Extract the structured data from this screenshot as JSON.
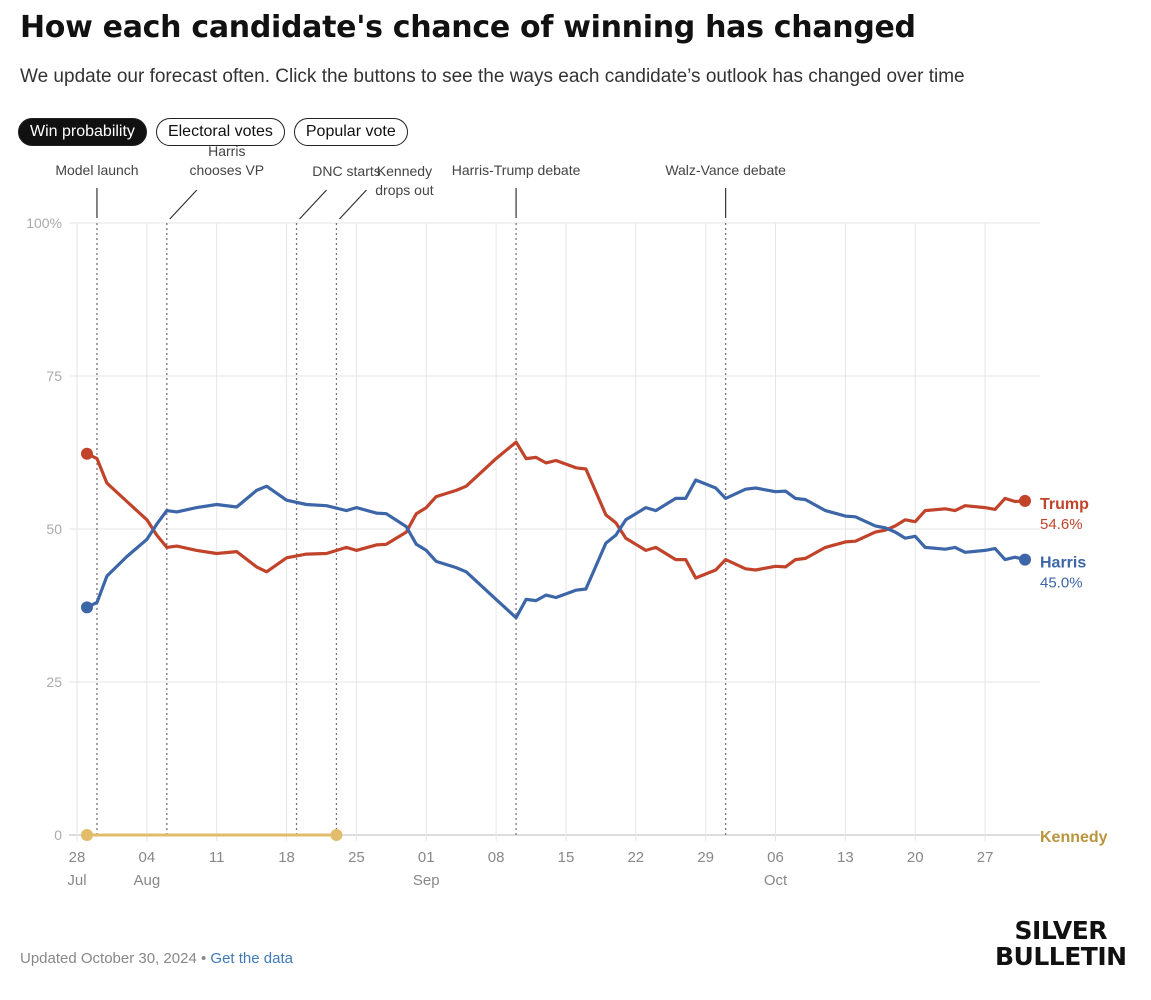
{
  "header": {
    "title": "How each candidate's chance of winning has changed",
    "subtitle": "We update our forecast often. Click the buttons to see the ways each candidate’s outlook has changed over time"
  },
  "buttons": [
    {
      "label": "Win probability",
      "active": true
    },
    {
      "label": "Electoral votes",
      "active": false
    },
    {
      "label": "Popular vote",
      "active": false
    }
  ],
  "footer": {
    "updated": "Updated October 30, 2024",
    "separator": "•",
    "link": "Get the data"
  },
  "logo": {
    "line1": "SILVER",
    "line2": "BULLETIN"
  },
  "colors": {
    "trump": "#c0432a",
    "harris": "#3d66a8",
    "kennedy": "#e2bc6a",
    "grid": "#e6e6e6"
  },
  "chart_data": {
    "type": "line",
    "ylim": [
      0,
      100
    ],
    "y_ticks": [
      {
        "value": 0,
        "label": "0"
      },
      {
        "value": 25,
        "label": "25"
      },
      {
        "value": 50,
        "label": "50"
      },
      {
        "value": 75,
        "label": "75"
      },
      {
        "value": 100,
        "label": "100%"
      }
    ],
    "x_range": [
      "2024-07-28",
      "2024-10-31"
    ],
    "x_ticks": [
      {
        "date": "2024-07-28",
        "label": "28",
        "month": "Jul"
      },
      {
        "date": "2024-08-04",
        "label": "04",
        "month": "Aug"
      },
      {
        "date": "2024-08-11",
        "label": "11",
        "month": ""
      },
      {
        "date": "2024-08-18",
        "label": "18",
        "month": ""
      },
      {
        "date": "2024-08-25",
        "label": "25",
        "month": ""
      },
      {
        "date": "2024-09-01",
        "label": "01",
        "month": "Sep"
      },
      {
        "date": "2024-09-08",
        "label": "08",
        "month": ""
      },
      {
        "date": "2024-09-15",
        "label": "15",
        "month": ""
      },
      {
        "date": "2024-09-22",
        "label": "22",
        "month": ""
      },
      {
        "date": "2024-09-29",
        "label": "29",
        "month": ""
      },
      {
        "date": "2024-10-06",
        "label": "06",
        "month": "Oct"
      },
      {
        "date": "2024-10-13",
        "label": "13",
        "month": ""
      },
      {
        "date": "2024-10-20",
        "label": "20",
        "month": ""
      },
      {
        "date": "2024-10-27",
        "label": "27",
        "month": ""
      }
    ],
    "events": [
      {
        "date": "2024-07-30",
        "label": [
          "Model launch"
        ],
        "connector": "vertical"
      },
      {
        "date": "2024-08-06",
        "label": [
          "Harris",
          "chooses VP"
        ],
        "connector": "diagonal"
      },
      {
        "date": "2024-08-19",
        "label": [
          "DNC starts"
        ],
        "connector": "diagonal"
      },
      {
        "date": "2024-08-23",
        "label": [
          "Kennedy",
          "drops out"
        ],
        "connector": "diagonal"
      },
      {
        "date": "2024-09-10",
        "label": [
          "Harris-Trump debate"
        ],
        "connector": "vertical"
      },
      {
        "date": "2024-10-01",
        "label": [
          "Walz-Vance debate"
        ],
        "connector": "vertical"
      }
    ],
    "series": [
      {
        "name": "Trump",
        "end_label": "54.6%",
        "points": [
          [
            "2024-07-29",
            62.3
          ],
          [
            "2024-07-30",
            61.5
          ],
          [
            "2024-07-31",
            57.5
          ],
          [
            "2024-08-02",
            54.5
          ],
          [
            "2024-08-04",
            51.5
          ],
          [
            "2024-08-05",
            49.0
          ],
          [
            "2024-08-06",
            47.0
          ],
          [
            "2024-08-07",
            47.2
          ],
          [
            "2024-08-09",
            46.5
          ],
          [
            "2024-08-11",
            46.0
          ],
          [
            "2024-08-13",
            46.3
          ],
          [
            "2024-08-15",
            43.8
          ],
          [
            "2024-08-16",
            43.0
          ],
          [
            "2024-08-18",
            45.3
          ],
          [
            "2024-08-20",
            45.9
          ],
          [
            "2024-08-22",
            46.0
          ],
          [
            "2024-08-24",
            47.0
          ],
          [
            "2024-08-25",
            46.5
          ],
          [
            "2024-08-27",
            47.4
          ],
          [
            "2024-08-28",
            47.5
          ],
          [
            "2024-08-30",
            49.5
          ],
          [
            "2024-08-31",
            52.5
          ],
          [
            "2024-09-01",
            53.5
          ],
          [
            "2024-09-02",
            55.3
          ],
          [
            "2024-09-04",
            56.3
          ],
          [
            "2024-09-05",
            57.0
          ],
          [
            "2024-09-07",
            60.0
          ],
          [
            "2024-09-08",
            61.5
          ],
          [
            "2024-09-10",
            64.2
          ],
          [
            "2024-09-11",
            61.5
          ],
          [
            "2024-09-12",
            61.7
          ],
          [
            "2024-09-13",
            60.8
          ],
          [
            "2024-09-14",
            61.2
          ],
          [
            "2024-09-16",
            60.0
          ],
          [
            "2024-09-17",
            59.8
          ],
          [
            "2024-09-19",
            52.3
          ],
          [
            "2024-09-20",
            51.0
          ],
          [
            "2024-09-21",
            48.5
          ],
          [
            "2024-09-23",
            46.5
          ],
          [
            "2024-09-24",
            47.0
          ],
          [
            "2024-09-26",
            45.0
          ],
          [
            "2024-09-27",
            45.0
          ],
          [
            "2024-09-28",
            42.0
          ],
          [
            "2024-09-30",
            43.3
          ],
          [
            "2024-10-01",
            45.0
          ],
          [
            "2024-10-03",
            43.5
          ],
          [
            "2024-10-04",
            43.3
          ],
          [
            "2024-10-06",
            43.9
          ],
          [
            "2024-10-07",
            43.8
          ],
          [
            "2024-10-08",
            45.0
          ],
          [
            "2024-10-09",
            45.2
          ],
          [
            "2024-10-11",
            47.0
          ],
          [
            "2024-10-13",
            47.9
          ],
          [
            "2024-10-14",
            48.0
          ],
          [
            "2024-10-16",
            49.5
          ],
          [
            "2024-10-17",
            49.8
          ],
          [
            "2024-10-18",
            50.5
          ],
          [
            "2024-10-19",
            51.5
          ],
          [
            "2024-10-20",
            51.2
          ],
          [
            "2024-10-21",
            53.0
          ],
          [
            "2024-10-23",
            53.3
          ],
          [
            "2024-10-24",
            53.0
          ],
          [
            "2024-10-25",
            53.8
          ],
          [
            "2024-10-27",
            53.5
          ],
          [
            "2024-10-28",
            53.2
          ],
          [
            "2024-10-29",
            55.0
          ],
          [
            "2024-10-30",
            54.5
          ],
          [
            "2024-10-31",
            54.6
          ]
        ]
      },
      {
        "name": "Harris",
        "end_label": "45.0%",
        "points": [
          [
            "2024-07-29",
            37.2
          ],
          [
            "2024-07-30",
            38.0
          ],
          [
            "2024-07-31",
            42.3
          ],
          [
            "2024-08-02",
            45.5
          ],
          [
            "2024-08-04",
            48.3
          ],
          [
            "2024-08-05",
            50.8
          ],
          [
            "2024-08-06",
            53.0
          ],
          [
            "2024-08-07",
            52.8
          ],
          [
            "2024-08-09",
            53.5
          ],
          [
            "2024-08-11",
            54.0
          ],
          [
            "2024-08-13",
            53.6
          ],
          [
            "2024-08-15",
            56.3
          ],
          [
            "2024-08-16",
            57.0
          ],
          [
            "2024-08-18",
            54.7
          ],
          [
            "2024-08-20",
            54.0
          ],
          [
            "2024-08-22",
            53.8
          ],
          [
            "2024-08-24",
            53.0
          ],
          [
            "2024-08-25",
            53.5
          ],
          [
            "2024-08-27",
            52.6
          ],
          [
            "2024-08-28",
            52.5
          ],
          [
            "2024-08-30",
            50.4
          ],
          [
            "2024-08-31",
            47.5
          ],
          [
            "2024-09-01",
            46.5
          ],
          [
            "2024-09-02",
            44.7
          ],
          [
            "2024-09-04",
            43.7
          ],
          [
            "2024-09-05",
            43.0
          ],
          [
            "2024-09-07",
            40.0
          ],
          [
            "2024-09-08",
            38.5
          ],
          [
            "2024-09-10",
            35.5
          ],
          [
            "2024-09-11",
            38.5
          ],
          [
            "2024-09-12",
            38.3
          ],
          [
            "2024-09-13",
            39.2
          ],
          [
            "2024-09-14",
            38.8
          ],
          [
            "2024-09-16",
            40.0
          ],
          [
            "2024-09-17",
            40.2
          ],
          [
            "2024-09-19",
            47.7
          ],
          [
            "2024-09-20",
            49.0
          ],
          [
            "2024-09-21",
            51.5
          ],
          [
            "2024-09-23",
            53.5
          ],
          [
            "2024-09-24",
            53.0
          ],
          [
            "2024-09-26",
            55.0
          ],
          [
            "2024-09-27",
            55.0
          ],
          [
            "2024-09-28",
            58.0
          ],
          [
            "2024-09-30",
            56.7
          ],
          [
            "2024-10-01",
            55.0
          ],
          [
            "2024-10-03",
            56.5
          ],
          [
            "2024-10-04",
            56.7
          ],
          [
            "2024-10-06",
            56.1
          ],
          [
            "2024-10-07",
            56.2
          ],
          [
            "2024-10-08",
            55.0
          ],
          [
            "2024-10-09",
            54.8
          ],
          [
            "2024-10-11",
            53.0
          ],
          [
            "2024-10-13",
            52.1
          ],
          [
            "2024-10-14",
            52.0
          ],
          [
            "2024-10-16",
            50.5
          ],
          [
            "2024-10-17",
            50.2
          ],
          [
            "2024-10-18",
            49.5
          ],
          [
            "2024-10-19",
            48.5
          ],
          [
            "2024-10-20",
            48.8
          ],
          [
            "2024-10-21",
            47.0
          ],
          [
            "2024-10-23",
            46.7
          ],
          [
            "2024-10-24",
            47.0
          ],
          [
            "2024-10-25",
            46.2
          ],
          [
            "2024-10-27",
            46.5
          ],
          [
            "2024-10-28",
            46.8
          ],
          [
            "2024-10-29",
            45.0
          ],
          [
            "2024-10-30",
            45.4
          ],
          [
            "2024-10-31",
            45.0
          ]
        ]
      },
      {
        "name": "Kennedy",
        "end_label": "",
        "points": [
          [
            "2024-07-29",
            0
          ],
          [
            "2024-08-23",
            0
          ]
        ]
      }
    ]
  }
}
